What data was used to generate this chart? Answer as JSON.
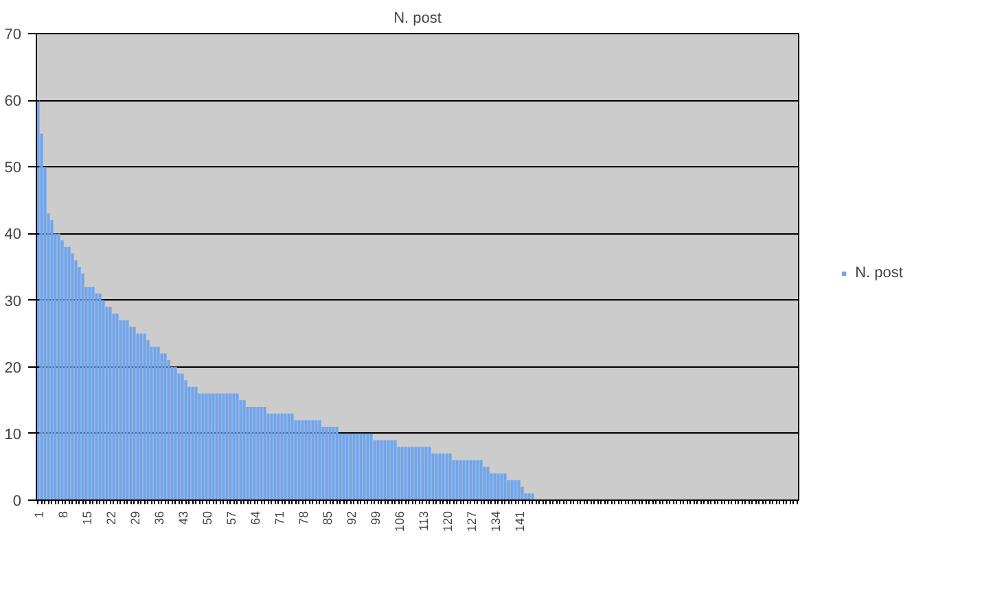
{
  "chart_data": {
    "type": "bar",
    "title": "N. post",
    "categories": [
      "1",
      null,
      null,
      null,
      null,
      null,
      null,
      "8",
      null,
      null,
      null,
      null,
      null,
      null,
      "15",
      null,
      null,
      null,
      null,
      null,
      null,
      "22",
      null,
      null,
      null,
      null,
      null,
      null,
      "29",
      null,
      null,
      null,
      null,
      null,
      null,
      "36",
      null,
      null,
      null,
      null,
      null,
      null,
      "43",
      null,
      null,
      null,
      null,
      null,
      null,
      "50",
      null,
      null,
      null,
      null,
      null,
      null,
      "57",
      null,
      null,
      null,
      null,
      null,
      null,
      "64",
      null,
      null,
      null,
      null,
      null,
      null,
      "71",
      null,
      null,
      null,
      null,
      null,
      null,
      "78",
      null,
      null,
      null,
      null,
      null,
      null,
      "85",
      null,
      null,
      null,
      null,
      null,
      null,
      "92",
      null,
      null,
      null,
      null,
      null,
      null,
      "99",
      null,
      null,
      null,
      null,
      null,
      null,
      "106",
      null,
      null,
      null,
      null,
      null,
      null,
      "113",
      null,
      null,
      null,
      null,
      null,
      null,
      "120",
      null,
      null,
      null,
      null,
      null,
      null,
      "127",
      null,
      null,
      null,
      null,
      null,
      null,
      "134",
      null,
      null,
      null,
      null,
      null,
      null,
      "141",
      null,
      null,
      null,
      null,
      null,
      null,
      null,
      null,
      null,
      null,
      null,
      null,
      null,
      null,
      null,
      null,
      null,
      null,
      null,
      null,
      null,
      null,
      null,
      null,
      null,
      null,
      null,
      null,
      null,
      null,
      null,
      null,
      null,
      null,
      null,
      null,
      null,
      null,
      null,
      null,
      null,
      null,
      null,
      null,
      null,
      null,
      null,
      null,
      null,
      null,
      null,
      null,
      null,
      null,
      null,
      null,
      null,
      null,
      null,
      null,
      null,
      null,
      null,
      null,
      null,
      null,
      null,
      null,
      null,
      null,
      null,
      null,
      null,
      null,
      null,
      null,
      null,
      null,
      null,
      null,
      null
    ],
    "series": [
      {
        "name": "N. post",
        "color": "#70a5ec",
        "values": [
          60,
          55,
          50,
          43,
          42,
          40,
          40,
          39,
          38,
          38,
          37,
          36,
          35,
          34,
          32,
          32,
          32,
          31,
          31,
          30,
          29,
          29,
          28,
          28,
          27,
          27,
          27,
          26,
          26,
          25,
          25,
          25,
          24,
          23,
          23,
          23,
          22,
          22,
          21,
          20,
          20,
          19,
          19,
          18,
          17,
          17,
          17,
          16,
          16,
          16,
          16,
          16,
          16,
          16,
          16,
          16,
          16,
          16,
          16,
          15,
          15,
          14,
          14,
          14,
          14,
          14,
          14,
          13,
          13,
          13,
          13,
          13,
          13,
          13,
          13,
          12,
          12,
          12,
          12,
          12,
          12,
          12,
          12,
          11,
          11,
          11,
          11,
          11,
          10,
          10,
          10,
          10,
          10,
          10,
          10,
          10,
          10,
          10,
          9,
          9,
          9,
          9,
          9,
          9,
          9,
          8,
          8,
          8,
          8,
          8,
          8,
          8,
          8,
          8,
          8,
          7,
          7,
          7,
          7,
          7,
          7,
          6,
          6,
          6,
          6,
          6,
          6,
          6,
          6,
          6,
          5,
          5,
          4,
          4,
          4,
          4,
          4,
          3,
          3,
          3,
          3,
          2,
          1,
          1,
          1,
          null,
          null,
          null,
          null,
          null,
          null,
          null,
          null,
          null,
          null,
          null,
          null,
          null,
          null,
          null,
          null,
          null,
          null,
          null,
          null,
          null,
          null,
          null,
          null,
          null,
          null,
          null,
          null,
          null,
          null,
          null,
          null,
          null,
          null,
          null,
          null,
          null,
          null,
          null,
          null,
          null,
          null,
          null,
          null,
          null,
          null,
          null,
          null,
          null,
          null,
          null,
          null,
          null,
          null,
          null,
          null,
          null,
          null,
          null,
          null,
          null,
          null,
          null,
          null,
          null,
          null,
          null,
          null,
          null,
          null,
          null,
          null,
          null,
          null,
          null,
          null,
          null
        ]
      }
    ],
    "ylim": [
      0,
      70
    ],
    "yticks": [
      0,
      10,
      20,
      30,
      40,
      50,
      60,
      70
    ],
    "grid": "y",
    "legend": "right"
  }
}
